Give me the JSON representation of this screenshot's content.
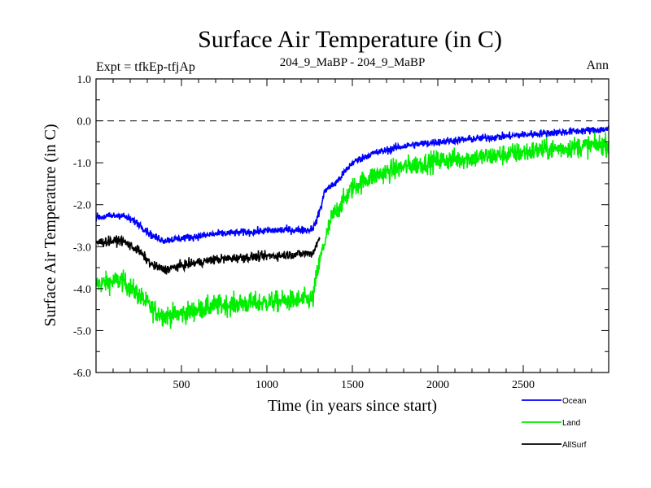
{
  "header": {
    "title": "Surface Air Temperature (in C)",
    "expt": "Expt = tfkEp-tfjAp",
    "subtitle": "204_9_MaBP - 204_9_MaBP",
    "period": "Ann"
  },
  "chart_data": {
    "type": "line",
    "title": "Surface Air Temperature (in C)",
    "xlabel": "Time (in years since start)",
    "ylabel": "Surface Air Temperature (in C)",
    "xlim": [
      0,
      3000
    ],
    "ylim": [
      -6.0,
      1.0
    ],
    "x_ticks": [
      500,
      1000,
      1500,
      2000,
      2500
    ],
    "y_ticks": [
      -6.0,
      -5.0,
      -4.0,
      -3.0,
      -2.0,
      -1.0,
      0.0,
      1.0
    ],
    "y_tick_labels": [
      "-6.0",
      "-5.0",
      "-4.0",
      "-3.0",
      "-2.0",
      "-1.0",
      "0.0",
      "1.0"
    ],
    "x_tick_labels": [
      "500",
      "1000",
      "1500",
      "2000",
      "2500"
    ],
    "reference_line": {
      "y": 0.0,
      "style": "dashed"
    },
    "grid": false,
    "legend_position": "bottom-right",
    "series": [
      {
        "name": "Ocean",
        "color": "#0000ff",
        "noise": 0.09,
        "points": [
          [
            0,
            -2.3
          ],
          [
            150,
            -2.25
          ],
          [
            250,
            -2.45
          ],
          [
            330,
            -2.75
          ],
          [
            400,
            -2.85
          ],
          [
            500,
            -2.8
          ],
          [
            700,
            -2.7
          ],
          [
            900,
            -2.65
          ],
          [
            1100,
            -2.6
          ],
          [
            1250,
            -2.6
          ],
          [
            1280,
            -2.5
          ],
          [
            1320,
            -2.0
          ],
          [
            1340,
            -1.65
          ],
          [
            1400,
            -1.5
          ],
          [
            1450,
            -1.25
          ],
          [
            1500,
            -1.0
          ],
          [
            1600,
            -0.8
          ],
          [
            1800,
            -0.6
          ],
          [
            2000,
            -0.5
          ],
          [
            2300,
            -0.4
          ],
          [
            2600,
            -0.3
          ],
          [
            3000,
            -0.2
          ]
        ]
      },
      {
        "name": "Land",
        "color": "#00ee00",
        "noise": 0.25,
        "points": [
          [
            0,
            -3.9
          ],
          [
            150,
            -3.8
          ],
          [
            250,
            -4.15
          ],
          [
            330,
            -4.5
          ],
          [
            400,
            -4.65
          ],
          [
            500,
            -4.6
          ],
          [
            700,
            -4.4
          ],
          [
            900,
            -4.35
          ],
          [
            1100,
            -4.3
          ],
          [
            1270,
            -4.25
          ],
          [
            1290,
            -3.7
          ],
          [
            1330,
            -3.0
          ],
          [
            1380,
            -2.3
          ],
          [
            1450,
            -1.9
          ],
          [
            1500,
            -1.6
          ],
          [
            1600,
            -1.35
          ],
          [
            1800,
            -1.1
          ],
          [
            2000,
            -0.95
          ],
          [
            2300,
            -0.85
          ],
          [
            2600,
            -0.7
          ],
          [
            3000,
            -0.55
          ]
        ]
      },
      {
        "name": "AllSurf",
        "color": "#000000",
        "noise": 0.11,
        "points": [
          [
            0,
            -2.9
          ],
          [
            150,
            -2.85
          ],
          [
            250,
            -3.1
          ],
          [
            330,
            -3.45
          ],
          [
            400,
            -3.55
          ],
          [
            500,
            -3.45
          ],
          [
            700,
            -3.3
          ],
          [
            900,
            -3.25
          ],
          [
            1100,
            -3.2
          ],
          [
            1270,
            -3.15
          ],
          [
            1290,
            -2.95
          ],
          [
            1310,
            -2.8
          ]
        ]
      }
    ]
  }
}
